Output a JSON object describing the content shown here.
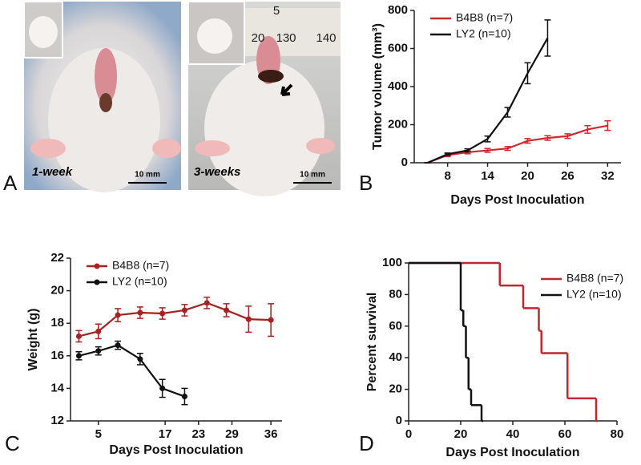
{
  "photos": {
    "label": "A",
    "panels": [
      {
        "caption": "1-week",
        "scale_bar": "10 mm"
      },
      {
        "caption": "3-weeks",
        "scale_bar": "10 mm",
        "ruler": [
          "5",
          "20",
          "130",
          "140"
        ]
      }
    ]
  },
  "chart_data": [
    {
      "type": "line",
      "label": "B",
      "y_label": "Tumor volume (mm³)",
      "x_label": "Days Post  Inoculation",
      "xlim": [
        3,
        34
      ],
      "xticks": [
        8,
        14,
        20,
        26,
        32
      ],
      "ylim": [
        0,
        800
      ],
      "yticks": [
        0,
        200,
        400,
        600,
        800
      ],
      "legend": "upper left",
      "markers": false,
      "series": [
        {
          "name": "B4B8 (n=7)",
          "color": "#d0282e",
          "x": [
            5,
            8,
            11,
            14,
            17,
            20,
            23,
            26,
            29,
            32
          ],
          "values": [
            0,
            40,
            55,
            65,
            75,
            115,
            130,
            140,
            175,
            195
          ],
          "errors": [
            0,
            8,
            8,
            10,
            10,
            12,
            12,
            12,
            20,
            25
          ]
        },
        {
          "name": "LY2 (n=10)",
          "color": "#111111",
          "x": [
            5,
            8,
            11,
            14,
            17,
            20,
            23
          ],
          "values": [
            0,
            45,
            65,
            125,
            265,
            470,
            655
          ],
          "errors": [
            0,
            6,
            8,
            15,
            25,
            55,
            95
          ]
        }
      ]
    },
    {
      "type": "line",
      "label": "C",
      "y_label": "Weight (g)",
      "x_label": "Days Post  Inoculation",
      "xlim": [
        0,
        38
      ],
      "xticks": [
        5,
        17,
        23,
        29,
        36
      ],
      "ylim": [
        12,
        22
      ],
      "yticks": [
        12,
        14,
        16,
        18,
        20,
        22
      ],
      "legend": "upper left",
      "markers": true,
      "series": [
        {
          "name": "B4B8 (n=7)",
          "color": "#a8201f",
          "x": [
            1.5,
            5,
            8.5,
            12.5,
            16.5,
            20.5,
            24.5,
            28,
            32,
            36
          ],
          "values": [
            17.2,
            17.5,
            18.5,
            18.65,
            18.6,
            18.8,
            19.25,
            18.8,
            18.25,
            18.2
          ],
          "errors": [
            0.35,
            0.45,
            0.4,
            0.35,
            0.35,
            0.35,
            0.35,
            0.4,
            0.8,
            1.0
          ]
        },
        {
          "name": "LY2 (n=10)",
          "color": "#111111",
          "x": [
            1.5,
            5,
            8.5,
            12.5,
            16.5,
            20.5
          ],
          "values": [
            16.0,
            16.3,
            16.65,
            15.8,
            14.0,
            13.5
          ],
          "errors": [
            0.25,
            0.25,
            0.25,
            0.35,
            0.55,
            0.5
          ]
        }
      ]
    },
    {
      "type": "step",
      "label": "D",
      "y_label": "Percent survival",
      "x_label": "Days Post  Inoculation",
      "xlim": [
        0,
        80
      ],
      "xticks": [
        0,
        20,
        40,
        60,
        80
      ],
      "ylim": [
        0,
        100
      ],
      "yticks": [
        0,
        20,
        40,
        60,
        80,
        100
      ],
      "legend": "upper right",
      "series": [
        {
          "name": "B4B8 (n=7)",
          "color": "#c0262d",
          "x": [
            0,
            35,
            44,
            50,
            51,
            61,
            72
          ],
          "values": [
            100,
            85.7,
            71.4,
            57.1,
            42.9,
            14.3,
            0
          ]
        },
        {
          "name": "LY2 (n=10)",
          "color": "#111111",
          "x": [
            0,
            20,
            21,
            22,
            23,
            24,
            28
          ],
          "values": [
            100,
            70,
            60,
            40,
            20,
            10,
            0
          ]
        }
      ]
    }
  ]
}
